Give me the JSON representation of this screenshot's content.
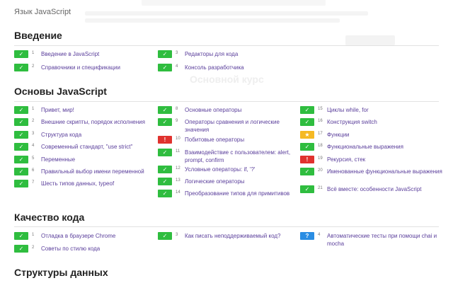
{
  "breadcrumb": "Язык JavaScript",
  "sections": [
    {
      "title": "Введение",
      "items": [
        {
          "num": "1",
          "label": "Введение в JavaScript",
          "status": "ok"
        },
        {
          "num": "2",
          "label": "Справочники и спецификации",
          "status": "ok"
        },
        {
          "num": "3",
          "label": "Редакторы для кода",
          "status": "ok"
        },
        {
          "num": "4",
          "label": "Консоль разработчика",
          "status": "ok"
        }
      ]
    },
    {
      "title": "Основы JavaScript",
      "items": [
        {
          "num": "1",
          "label": "Привет, мир!",
          "status": "ok"
        },
        {
          "num": "2",
          "label": "Внешние скрипты, порядок исполнения",
          "status": "ok"
        },
        {
          "num": "3",
          "label": "Структура кода",
          "status": "ok"
        },
        {
          "num": "4",
          "label": "Современный стандарт, \"use strict\"",
          "status": "ok"
        },
        {
          "num": "5",
          "label": "Переменные",
          "status": "ok"
        },
        {
          "num": "6",
          "label": "Правильный выбор имени переменной",
          "status": "ok"
        },
        {
          "num": "7",
          "label": "Шесть типов данных, typeof",
          "status": "ok"
        },
        {
          "num": "8",
          "label": "Основные операторы",
          "status": "ok"
        },
        {
          "num": "9",
          "label": "Операторы сравнения и логические значения",
          "status": "ok"
        },
        {
          "num": "10",
          "label": "Побитовые операторы",
          "status": "fail"
        },
        {
          "num": "11",
          "label": "Взаимодействие с пользователем: alert, prompt, confirm",
          "status": "ok"
        },
        {
          "num": "12",
          "label": "Условные операторы: if, '?'",
          "status": "ok"
        },
        {
          "num": "13",
          "label": "Логические операторы",
          "status": "ok"
        },
        {
          "num": "14",
          "label": "Преобразование типов для примитивов",
          "status": "ok"
        },
        {
          "num": "15",
          "label": "Циклы while, for",
          "status": "ok"
        },
        {
          "num": "16",
          "label": "Конструкция switch",
          "status": "ok"
        },
        {
          "num": "17",
          "label": "Функции",
          "status": "star"
        },
        {
          "num": "18",
          "label": "Функциональные выражения",
          "status": "ok"
        },
        {
          "num": "19",
          "label": "Рекурсия, стек",
          "status": "fail"
        },
        {
          "num": "20",
          "label": "Именованные функциональные выражения",
          "status": "ok"
        },
        {
          "num": "21",
          "label": "Всё вместе: особенности JavaScript",
          "status": "ok"
        }
      ]
    },
    {
      "title": "Качество кода",
      "items": [
        {
          "num": "1",
          "label": "Отладка в браузере Chrome",
          "status": "ok"
        },
        {
          "num": "2",
          "label": "Советы по стилю кода",
          "status": "ok"
        },
        {
          "num": "3",
          "label": "Как писать неподдерживаемый код?",
          "status": "ok"
        },
        {
          "num": "4",
          "label": "Автоматические тесты при помощи chai и mocha",
          "status": "help"
        }
      ]
    },
    {
      "title": "Структуры данных",
      "items": []
    }
  ],
  "status_marks": {
    "ok": "✓",
    "fail": "!",
    "star": "★",
    "help": "?"
  },
  "colors": {
    "ok": "#2fbd3f",
    "fail": "#e0322e",
    "star": "#f5b923",
    "help": "#2a8de3",
    "link": "#5a3e9b"
  },
  "ghost": {
    "course_text": "Основной курс"
  }
}
